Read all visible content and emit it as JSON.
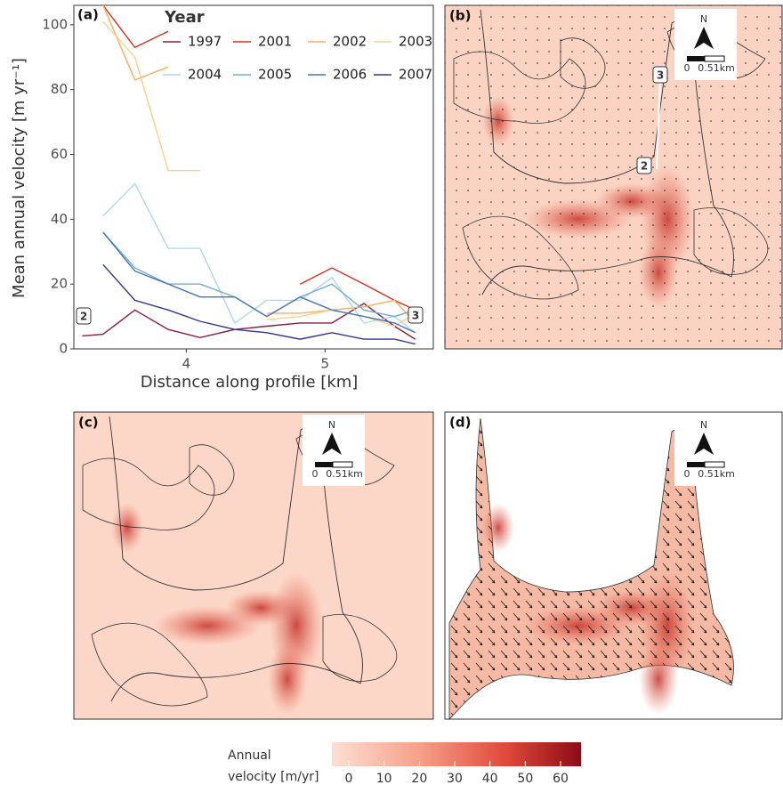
{
  "chart_data": {
    "type": "line",
    "x_label": "Distance along profile [km]",
    "y_label": "Mean annual velocity [m yr⁻¹]",
    "legend_title": "Year",
    "x": [
      3.25,
      3.4,
      3.63,
      3.87,
      4.1,
      4.35,
      4.58,
      4.82,
      5.05,
      5.28,
      5.5,
      5.65
    ],
    "series": [
      {
        "name": "1997",
        "color": "#8c1d40",
        "values": [
          4,
          4.5,
          12,
          6,
          3.5,
          6,
          7,
          8,
          8,
          14,
          7,
          3
        ]
      },
      {
        "name": "2001",
        "color": "#d7301f",
        "values": [
          null,
          106,
          93,
          98,
          null,
          null,
          null,
          20,
          25,
          20,
          15,
          12
        ]
      },
      {
        "name": "2002",
        "color": "#fdae61",
        "values": [
          null,
          106,
          83,
          87,
          null,
          null,
          11,
          11,
          12,
          13,
          15,
          8
        ]
      },
      {
        "name": "2003",
        "color": "#fdd08a",
        "values": [
          null,
          101,
          90,
          55,
          55,
          null,
          9,
          10,
          12,
          10,
          7,
          11
        ]
      },
      {
        "name": "2004",
        "color": "#abd9e9",
        "values": [
          null,
          41,
          51,
          31,
          31,
          8,
          15,
          15,
          22,
          8,
          10,
          5
        ]
      },
      {
        "name": "2005",
        "color": "#74add1",
        "values": [
          null,
          36,
          25,
          20,
          20,
          16,
          10,
          16,
          20,
          12,
          10,
          12
        ]
      },
      {
        "name": "2006",
        "color": "#4575b4",
        "values": [
          null,
          36,
          24,
          20,
          16,
          16,
          10,
          16,
          12,
          10,
          8,
          5
        ]
      },
      {
        "name": "2007",
        "color": "#313695",
        "values": [
          null,
          26,
          15,
          12,
          8.5,
          6,
          5,
          3,
          5,
          3,
          3,
          1.5
        ]
      }
    ],
    "xlim": [
      3.19,
      5.78
    ],
    "xticks": [
      4,
      5
    ],
    "ylim": [
      0,
      106
    ],
    "yticks": [
      0,
      20,
      40,
      60,
      80,
      100
    ],
    "annotations": [
      "2",
      "3"
    ]
  },
  "panel_labels": [
    "(a)",
    "(b)",
    "(c)",
    "(d)"
  ],
  "maps": {
    "north": "N",
    "scale_start": "0",
    "scale_end": "0.51km",
    "markers": [
      "2",
      "3"
    ]
  },
  "colorbar": {
    "label": [
      "Annual",
      "velocity [m/yr]"
    ],
    "lim": [
      0,
      60
    ],
    "ticks": [
      0,
      10,
      20,
      30,
      40,
      50,
      60
    ]
  }
}
